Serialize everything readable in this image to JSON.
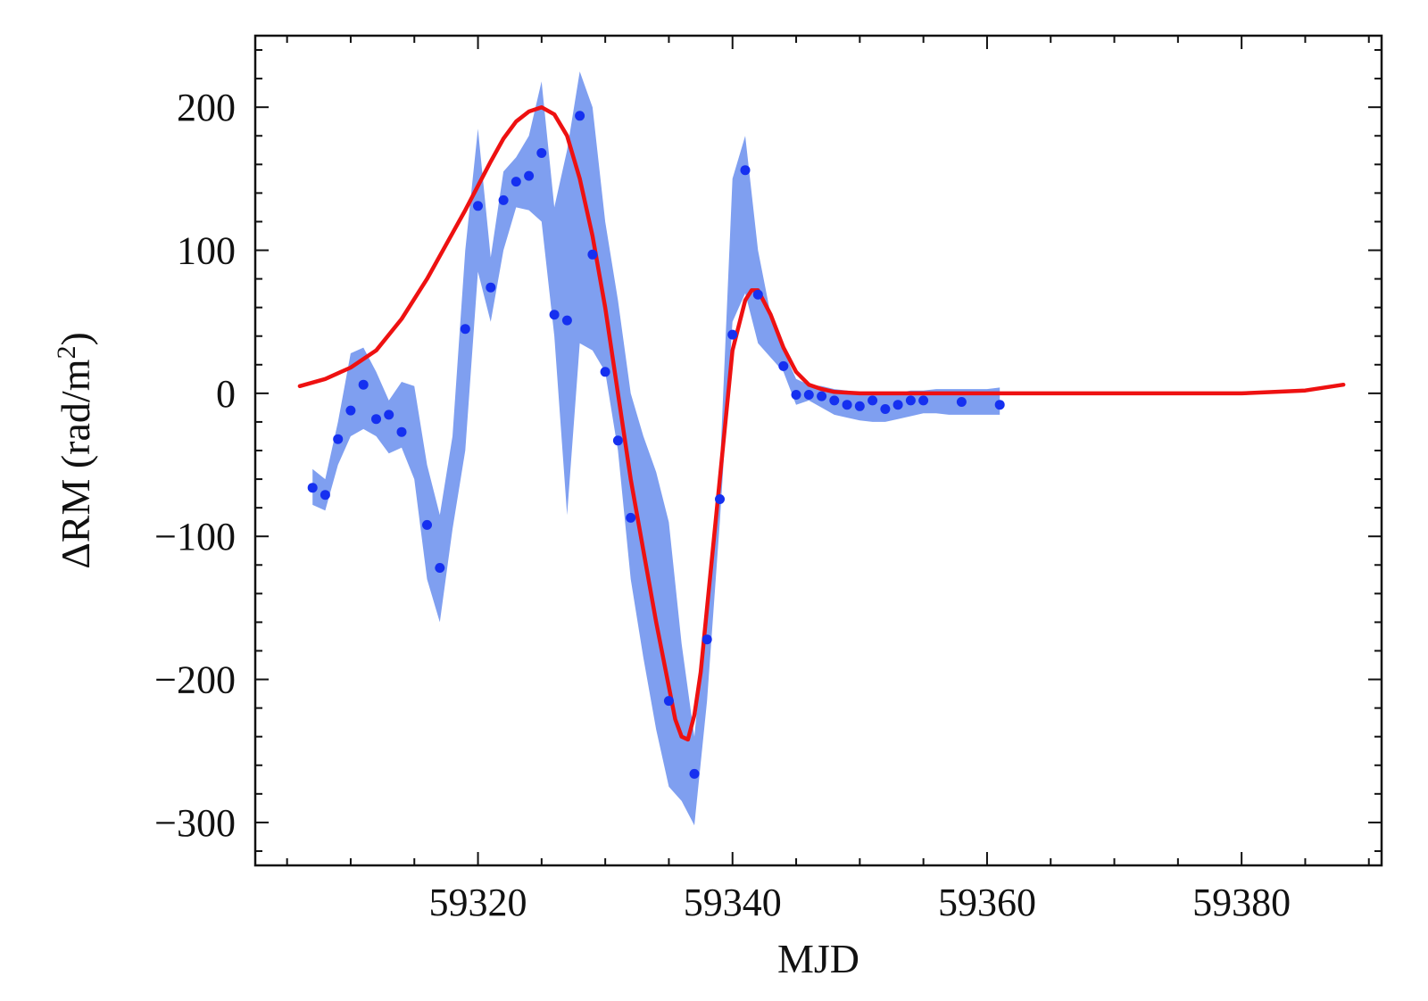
{
  "chart_data": {
    "type": "line",
    "title": "",
    "xlabel": "MJD",
    "ylabel": "ΔRM (rad/m",
    "ylabel_sup": "2",
    "ylabel_tail": ")",
    "xlim": [
      59302.5,
      59391
    ],
    "ylim": [
      -330,
      250
    ],
    "x_ticks": [
      59320,
      59340,
      59360,
      59380
    ],
    "x_tick_labels": [
      "59320",
      "59340",
      "59360",
      "59380"
    ],
    "x_minor_step": 5,
    "y_ticks": [
      200,
      100,
      0,
      -100,
      -200,
      -300
    ],
    "y_tick_labels": [
      "200",
      "100",
      "0",
      "−100",
      "−200",
      "−300"
    ],
    "y_minor_step": 20,
    "grid": false,
    "series": [
      {
        "kind": "band",
        "color": "#7f9ff0",
        "x": [
          59307,
          59308,
          59309,
          59310,
          59311,
          59312,
          59313,
          59314,
          59315,
          59316,
          59317,
          59318,
          59319,
          59320,
          59321,
          59322,
          59323,
          59324,
          59325,
          59326,
          59327,
          59328,
          59329,
          59330,
          59331,
          59332,
          59333,
          59334,
          59335,
          59336,
          59337,
          59338,
          59339,
          59340,
          59341,
          59342,
          59343,
          59344,
          59345,
          59346,
          59347,
          59348,
          59349,
          59350,
          59351,
          59352,
          59353,
          59354,
          59355,
          59356,
          59357,
          59358,
          59359,
          59360,
          59361
        ],
        "upper": [
          -53,
          -60,
          -20,
          28,
          32,
          15,
          -5,
          8,
          5,
          -50,
          -85,
          -30,
          100,
          185,
          95,
          155,
          165,
          180,
          218,
          130,
          170,
          225,
          200,
          120,
          65,
          0,
          -30,
          -55,
          -90,
          -175,
          -240,
          -150,
          -55,
          150,
          180,
          100,
          55,
          30,
          10,
          6,
          5,
          3,
          2,
          0,
          0,
          0,
          0,
          2,
          2,
          3,
          3,
          3,
          3,
          3,
          4
        ],
        "lower": [
          -78,
          -82,
          -50,
          -30,
          -25,
          -30,
          -42,
          -38,
          -60,
          -130,
          -160,
          -95,
          -40,
          85,
          50,
          100,
          130,
          128,
          120,
          40,
          -85,
          35,
          30,
          15,
          -40,
          -130,
          -185,
          -235,
          -275,
          -285,
          -302,
          -215,
          -90,
          50,
          70,
          35,
          25,
          15,
          -8,
          -5,
          -10,
          -15,
          -17,
          -19,
          -20,
          -20,
          -18,
          -16,
          -14,
          -14,
          -15,
          -15,
          -15,
          -15,
          -15
        ]
      },
      {
        "kind": "points",
        "color": "#1530f0",
        "x": [
          59307,
          59308,
          59309,
          59310,
          59311,
          59312,
          59313,
          59314,
          59316,
          59317,
          59319,
          59320,
          59321,
          59322,
          59323,
          59324,
          59325,
          59326,
          59327,
          59328,
          59329,
          59330,
          59331,
          59332,
          59335,
          59337,
          59338,
          59339,
          59340,
          59341,
          59342,
          59344,
          59345,
          59346,
          59347,
          59348,
          59349,
          59350,
          59351,
          59352,
          59353,
          59354,
          59355,
          59358,
          59361
        ],
        "y": [
          -66,
          -71,
          -32,
          -12,
          6,
          -18,
          -15,
          -27,
          -92,
          -122,
          45,
          131,
          74,
          135,
          148,
          152,
          168,
          55,
          51,
          194,
          97,
          15,
          -33,
          -87,
          -215,
          -266,
          -172,
          -74,
          41,
          156,
          69,
          19,
          -1,
          -1,
          -2,
          -5,
          -8,
          -9,
          -5,
          -11,
          -8,
          -5,
          -5,
          -6,
          -8
        ]
      },
      {
        "kind": "line",
        "color": "#ee1111",
        "x": [
          59306,
          59308,
          59310,
          59312,
          59314,
          59316,
          59318,
          59319,
          59320,
          59321,
          59322,
          59323,
          59324,
          59325,
          59326,
          59327,
          59328,
          59329,
          59330,
          59331,
          59332,
          59333,
          59334,
          59335,
          59335.5,
          59336,
          59336.5,
          59337,
          59337.5,
          59338,
          59339,
          59340,
          59341,
          59341.5,
          59342,
          59343,
          59344,
          59345,
          59346,
          59347,
          59348,
          59350,
          59355,
          59360,
          59370,
          59380,
          59385,
          59388
        ],
        "y": [
          5,
          10,
          18,
          30,
          52,
          80,
          112,
          128,
          145,
          162,
          178,
          190,
          197,
          200,
          195,
          180,
          150,
          110,
          60,
          0,
          -60,
          -110,
          -160,
          -205,
          -228,
          -240,
          -242,
          -225,
          -195,
          -150,
          -60,
          30,
          65,
          72,
          72,
          55,
          32,
          15,
          6,
          3,
          1,
          0,
          0,
          0,
          0,
          0,
          2,
          6
        ]
      }
    ]
  }
}
